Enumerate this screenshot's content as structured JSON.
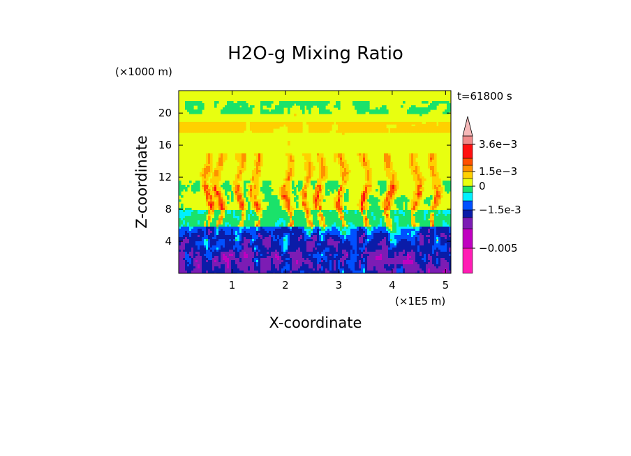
{
  "chart_data": {
    "type": "heatmap",
    "title": "H2O-g Mixing Ratio",
    "xlabel": "X-coordinate",
    "ylabel": "Z-coordinate",
    "x_unit": "(×1E5 m)",
    "y_unit": "(×1000 m)",
    "time_label": "t=61800 s",
    "xlim": [
      0,
      5.1
    ],
    "ylim": [
      0,
      22.8
    ],
    "x_ticks": [
      1,
      2,
      3,
      4,
      5
    ],
    "y_ticks": [
      4,
      8,
      12,
      16,
      20
    ],
    "colorbar": {
      "colors": [
        "#ff1cb4",
        "#c000c0",
        "#7c1cb4",
        "#0a1ca8",
        "#0050ff",
        "#00f0ff",
        "#1ae26a",
        "#e8ff10",
        "#ffd000",
        "#ff9000",
        "#ff5000",
        "#ff1010",
        "#f08a8a",
        "#f5b8b8"
      ],
      "label_values": [
        0.0036,
        0.0015,
        0,
        -0.0015,
        -0.005
      ],
      "label_texts": [
        "3.6e-3",
        "1.5e-3",
        "0",
        "-1.5e-3",
        "-0.005"
      ],
      "label_bin_index": [
        12,
        9,
        7,
        4,
        1
      ]
    }
  }
}
